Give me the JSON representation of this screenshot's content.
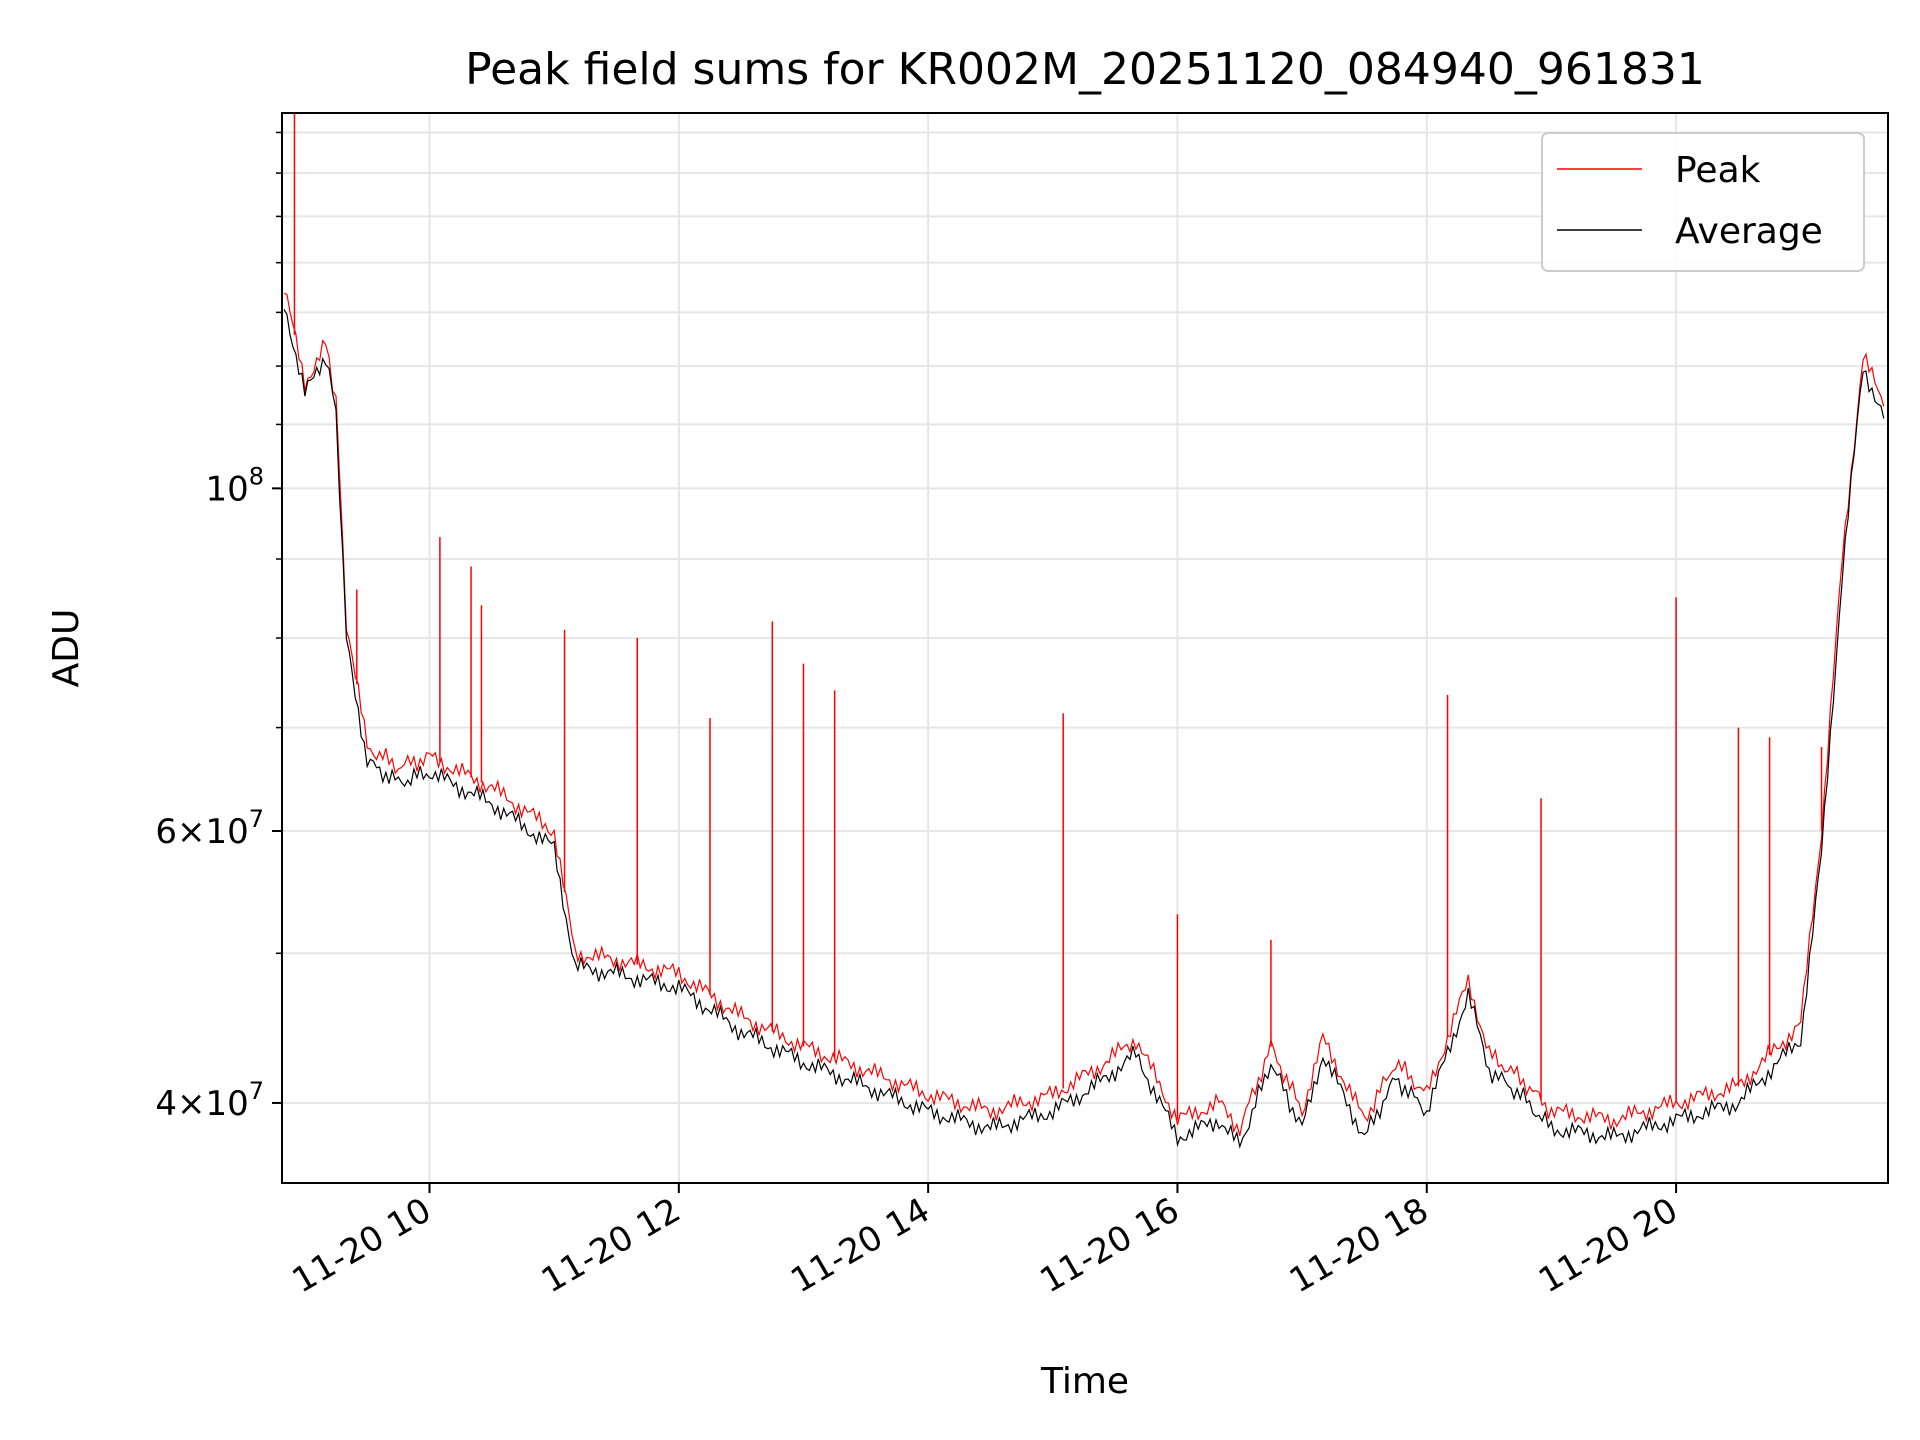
{
  "chart_data": {
    "type": "line",
    "title": "Peak field sums for KR002M_20251120_084940_961831",
    "xlabel": "Time",
    "ylabel": "ADU",
    "y_scale": "log",
    "grid": true,
    "legend_position": "top-right",
    "x_tick_labels": [
      "11-20 10",
      "11-20 12",
      "11-20 14",
      "11-20 16",
      "11-20 18",
      "11-20 20"
    ],
    "x_ticks": [
      "2025-11-20 10:00",
      "2025-11-20 12:00",
      "2025-11-20 14:00",
      "2025-11-20 16:00",
      "2025-11-20 18:00",
      "2025-11-20 20:00"
    ],
    "xlim": [
      "2025-11-20 08:49",
      "2025-11-20 21:42"
    ],
    "ylim": [
      35500000,
      175000000
    ],
    "y_major_ticks": [
      {
        "value": 40000000,
        "mant": "4",
        "exp": "7"
      },
      {
        "value": 60000000,
        "mant": "6",
        "exp": "7"
      },
      {
        "value": 100000000,
        "mant": "",
        "exp": "8"
      }
    ],
    "x": [
      "2025-11-20 08:50",
      "2025-11-20 09:00",
      "2025-11-20 09:10",
      "2025-11-20 09:15",
      "2025-11-20 09:20",
      "2025-11-20 09:30",
      "2025-11-20 09:45",
      "2025-11-20 10:00",
      "2025-11-20 10:30",
      "2025-11-20 11:00",
      "2025-11-20 11:10",
      "2025-11-20 11:30",
      "2025-11-20 12:00",
      "2025-11-20 12:30",
      "2025-11-20 13:00",
      "2025-11-20 13:30",
      "2025-11-20 14:00",
      "2025-11-20 14:30",
      "2025-11-20 15:00",
      "2025-11-20 15:20",
      "2025-11-20 15:40",
      "2025-11-20 16:00",
      "2025-11-20 16:20",
      "2025-11-20 16:30",
      "2025-11-20 16:45",
      "2025-11-20 17:00",
      "2025-11-20 17:10",
      "2025-11-20 17:30",
      "2025-11-20 17:45",
      "2025-11-20 18:00",
      "2025-11-20 18:20",
      "2025-11-20 18:30",
      "2025-11-20 18:45",
      "2025-11-20 19:00",
      "2025-11-20 19:30",
      "2025-11-20 20:00",
      "2025-11-20 20:30",
      "2025-11-20 21:00",
      "2025-11-20 21:10",
      "2025-11-20 21:20",
      "2025-11-20 21:30",
      "2025-11-20 21:40"
    ],
    "series": [
      {
        "name": "Peak",
        "color": "#ff0000",
        "values": [
          135000000,
          117000000,
          124000000,
          114000000,
          82000000,
          68000000,
          66000000,
          67000000,
          64000000,
          60000000,
          50000000,
          49500000,
          48500000,
          45500000,
          43500000,
          42000000,
          40500000,
          39500000,
          40500000,
          42000000,
          44000000,
          39000000,
          40000000,
          38500000,
          43500000,
          39500000,
          44000000,
          39000000,
          42500000,
          40500000,
          48000000,
          43000000,
          41500000,
          39500000,
          39000000,
          40000000,
          41000000,
          45000000,
          60000000,
          90000000,
          122000000,
          113000000
        ]
      },
      {
        "name": "Average",
        "color": "#000000",
        "values": [
          132000000,
          115000000,
          122000000,
          112000000,
          80000000,
          66500000,
          64500000,
          65500000,
          62500000,
          58500000,
          49000000,
          48500000,
          47500000,
          44500000,
          42500000,
          41000000,
          39500000,
          38500000,
          39500000,
          41000000,
          43000000,
          38000000,
          39000000,
          37500000,
          42500000,
          38500000,
          43000000,
          38000000,
          41500000,
          39500000,
          47000000,
          42000000,
          40500000,
          38500000,
          38000000,
          39000000,
          40000000,
          44000000,
          58000000,
          88000000,
          120000000,
          111000000
        ]
      }
    ],
    "peak_spikes": [
      {
        "x": "2025-11-20 08:55",
        "y": 175000000
      },
      {
        "x": "2025-11-20 09:25",
        "y": 86000000
      },
      {
        "x": "2025-11-20 10:05",
        "y": 93000000
      },
      {
        "x": "2025-11-20 10:20",
        "y": 89000000
      },
      {
        "x": "2025-11-20 10:25",
        "y": 84000000
      },
      {
        "x": "2025-11-20 11:05",
        "y": 81000000
      },
      {
        "x": "2025-11-20 11:40",
        "y": 80000000
      },
      {
        "x": "2025-11-20 12:15",
        "y": 71000000
      },
      {
        "x": "2025-11-20 12:45",
        "y": 82000000
      },
      {
        "x": "2025-11-20 13:00",
        "y": 77000000
      },
      {
        "x": "2025-11-20 13:15",
        "y": 74000000
      },
      {
        "x": "2025-11-20 15:05",
        "y": 71500000
      },
      {
        "x": "2025-11-20 16:00",
        "y": 53000000
      },
      {
        "x": "2025-11-20 16:45",
        "y": 51000000
      },
      {
        "x": "2025-11-20 18:10",
        "y": 73500000
      },
      {
        "x": "2025-11-20 18:55",
        "y": 63000000
      },
      {
        "x": "2025-11-20 20:00",
        "y": 85000000
      },
      {
        "x": "2025-11-20 20:30",
        "y": 70000000
      },
      {
        "x": "2025-11-20 20:45",
        "y": 69000000
      },
      {
        "x": "2025-11-20 21:10",
        "y": 68000000
      }
    ]
  }
}
